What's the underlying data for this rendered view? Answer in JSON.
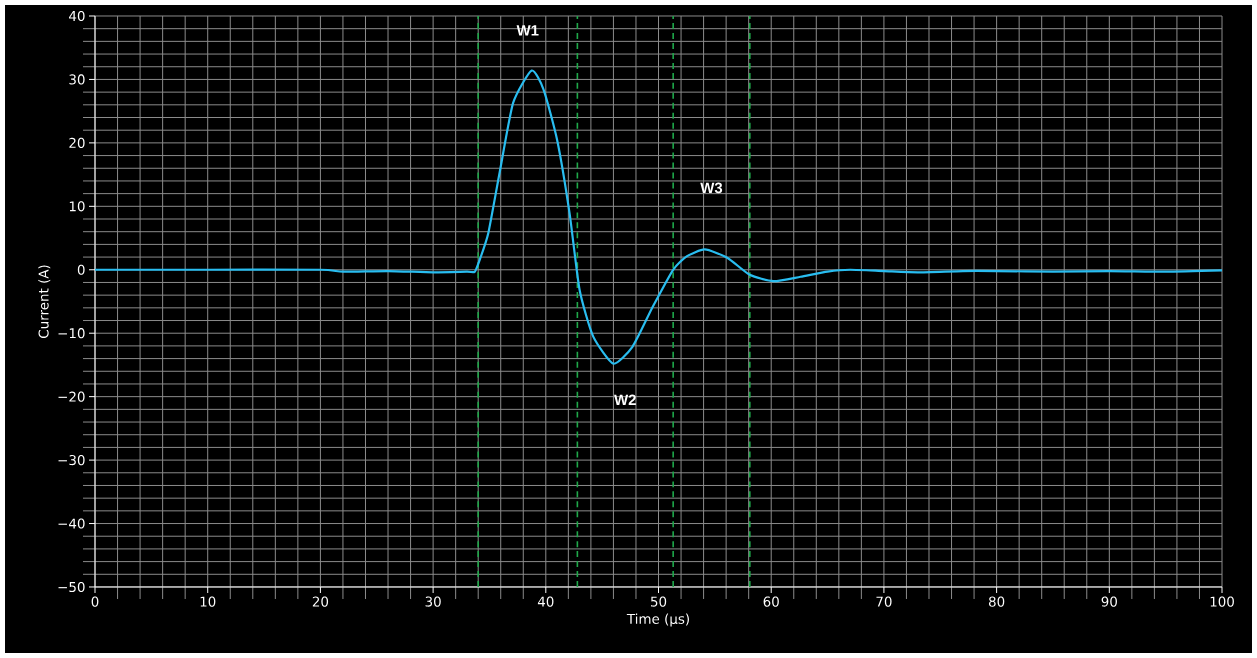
{
  "chart_data": {
    "type": "line",
    "xlabel": "Time (µs)",
    "ylabel": "Current (A)",
    "xlim": [
      0,
      100
    ],
    "ylim": [
      -50,
      40
    ],
    "xticks": [
      0,
      10,
      20,
      30,
      40,
      50,
      60,
      70,
      80,
      90,
      100
    ],
    "yticks": [
      {
        "value": -50,
        "label": "−50"
      },
      {
        "value": -40,
        "label": "−40"
      },
      {
        "value": -30,
        "label": "−30"
      },
      {
        "value": -20,
        "label": "−20"
      },
      {
        "value": -10,
        "label": "−10"
      },
      0,
      10,
      20,
      30,
      40
    ],
    "grid": true,
    "series": [
      {
        "color": "#29bdf0",
        "x": [
          0,
          10,
          20,
          22,
          26,
          30,
          33,
          33.7,
          34.2,
          34.9,
          35.9,
          37.1,
          38.75,
          39.8,
          41.0,
          42.1,
          43.0,
          44.2,
          46.0,
          47.7,
          49.5,
          51.3,
          52.5,
          54.1,
          56.1,
          58.1,
          60.2,
          62.6,
          65,
          67,
          70,
          73,
          77,
          80,
          85,
          90,
          95,
          100
        ],
        "values": [
          0,
          0,
          0,
          -0.3,
          -0.2,
          -0.4,
          -0.3,
          -0.3,
          1.9,
          5.8,
          15.3,
          26.3,
          31.4,
          28.4,
          20.5,
          9.0,
          -3.2,
          -10.5,
          -14.8,
          -12.1,
          -5.8,
          0,
          2.1,
          3.2,
          1.9,
          -0.8,
          -1.8,
          -1.1,
          -0.3,
          0,
          -0.2,
          -0.4,
          -0.2,
          -0.2,
          -0.3,
          -0.2,
          -0.3,
          -0.1
        ]
      }
    ],
    "ref_lines": [
      {
        "axis": "x",
        "value": 34,
        "color": "#1fa84a",
        "line_style": "dashed"
      },
      {
        "axis": "x",
        "value": 42.8,
        "color": "#1fa84a",
        "line_style": "dashed"
      },
      {
        "axis": "x",
        "value": 51.3,
        "color": "#1fa84a",
        "line_style": "dashed"
      },
      {
        "axis": "x",
        "value": 58.1,
        "color": "#1fa84a",
        "line_style": "dashed"
      }
    ],
    "annotations": [
      "W1",
      "W2",
      "W3"
    ]
  }
}
